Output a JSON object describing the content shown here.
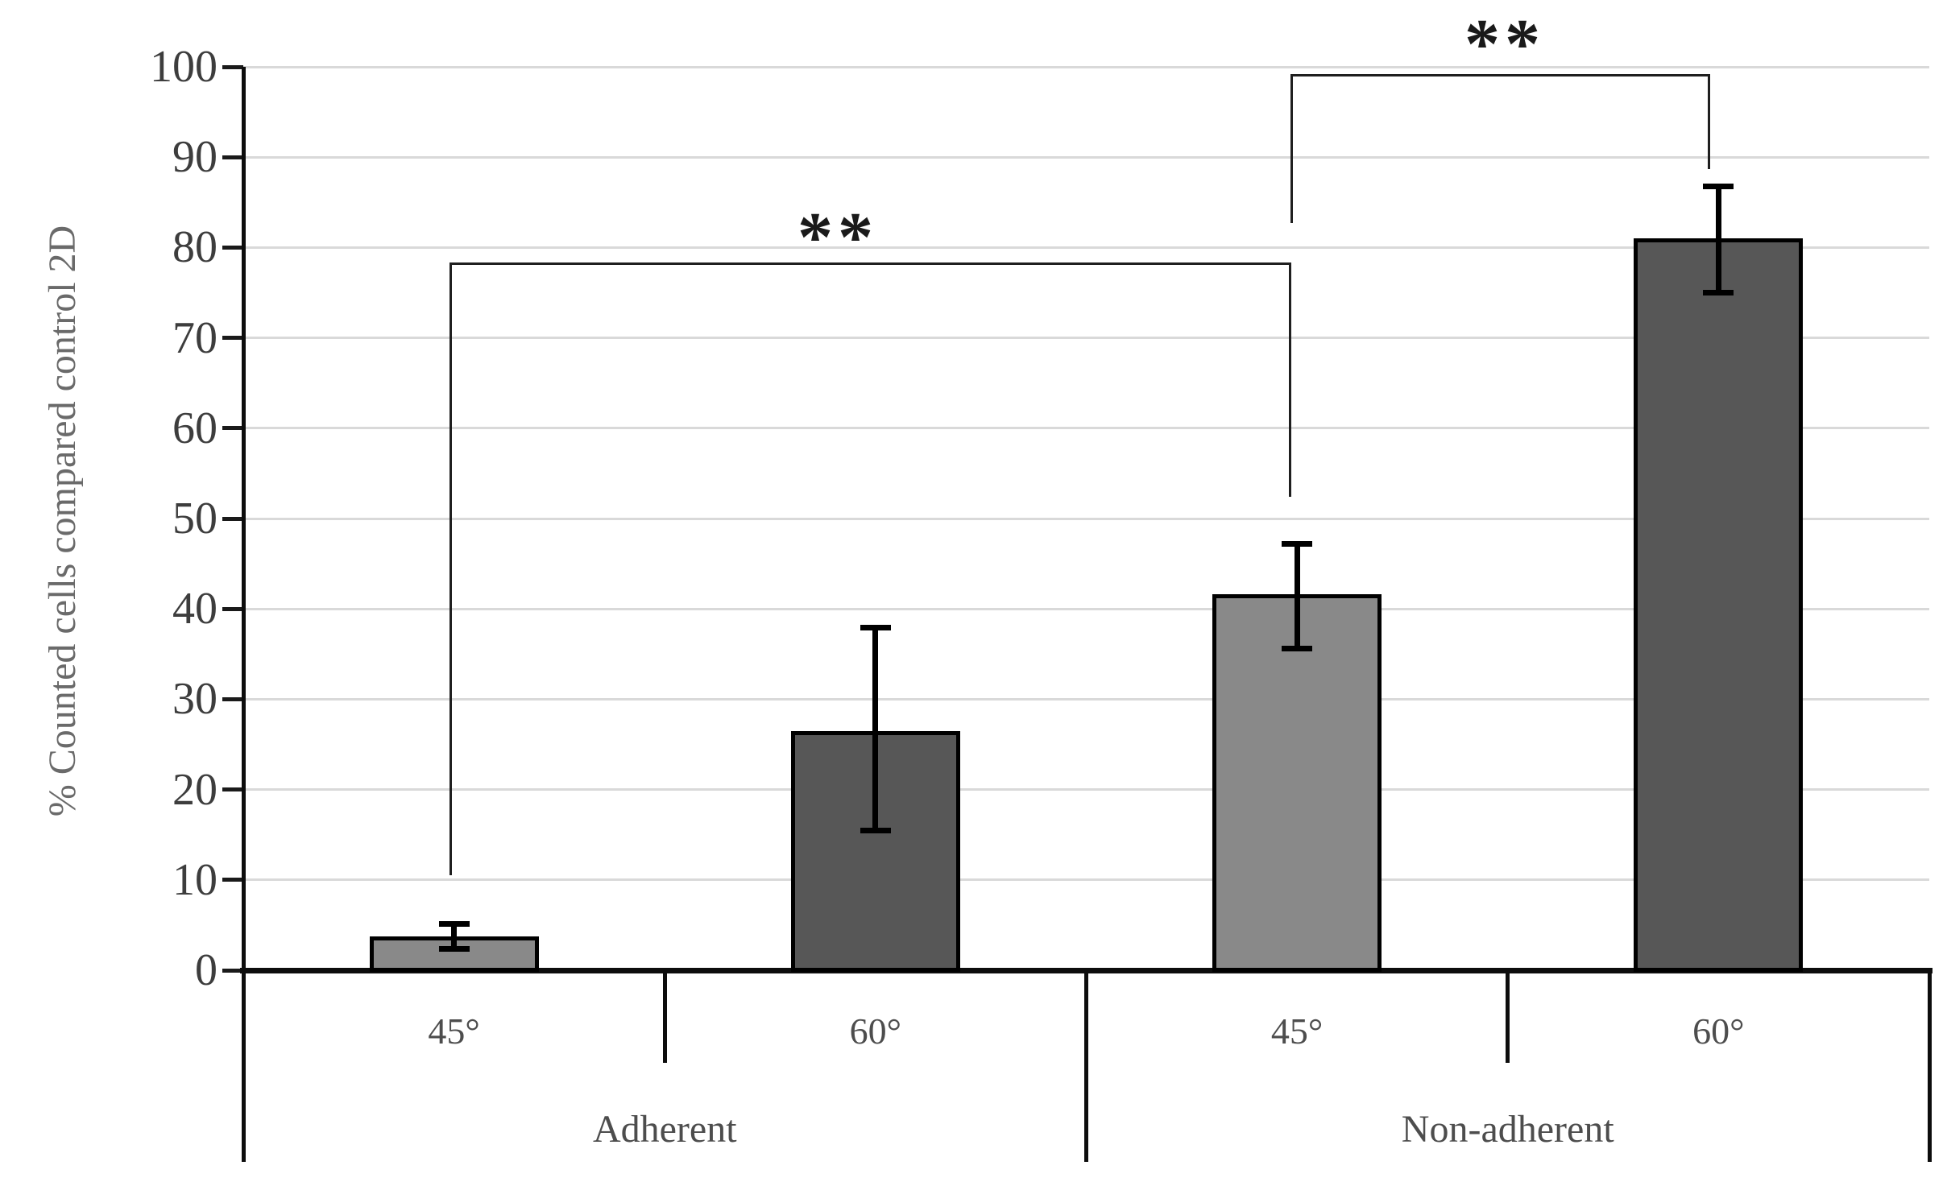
{
  "chart_data": {
    "type": "bar",
    "title": "",
    "xlabel": "",
    "ylabel": "% Counted cells compared control 2D",
    "ylim": [
      0,
      100
    ],
    "yticks": [
      0,
      10,
      20,
      30,
      40,
      50,
      60,
      70,
      80,
      90,
      100
    ],
    "grid": true,
    "legend": false,
    "categories": [
      "Adherent 45°",
      "Adherent 60°",
      "Non-adherent 45°",
      "Non-adherent 60°"
    ],
    "groups": [
      {
        "label": "Adherent",
        "bars": [
          {
            "category": "45°",
            "value": 3.7,
            "error_plus": 1.4,
            "error_minus": 1.3,
            "fill": "#898989"
          },
          {
            "category": "60°",
            "value": 26.5,
            "error_plus": 11.4,
            "error_minus": 11.0,
            "fill": "#575757"
          }
        ]
      },
      {
        "label": "Non-adherent",
        "bars": [
          {
            "category": "45°",
            "value": 41.6,
            "error_plus": 5.6,
            "error_minus": 6.0,
            "fill": "#898989"
          },
          {
            "category": "60°",
            "value": 81.0,
            "error_plus": 5.8,
            "error_minus": 6.0,
            "fill": "#575757"
          }
        ]
      }
    ],
    "significance_brackets": [
      {
        "label": "**",
        "from": "Adherent 45°",
        "to": "Non-adherent 45°"
      },
      {
        "label": "**",
        "from": "Non-adherent 45°",
        "to": "Non-adherent 60°"
      }
    ]
  },
  "colors": {
    "background": "#ffffff",
    "bar_light": "#898989",
    "bar_dark": "#575757",
    "bar_border": "#000000",
    "gridline": "#d9d9d9",
    "axis": "#0d0d0d",
    "tick_label": "#3d3d3d",
    "category_label": "#4d4d4d",
    "group_label": "#4d4d4d",
    "axis_title": "#6a6a6a",
    "bracket": "#1f1f1f",
    "significance": "#1a1a1a"
  }
}
